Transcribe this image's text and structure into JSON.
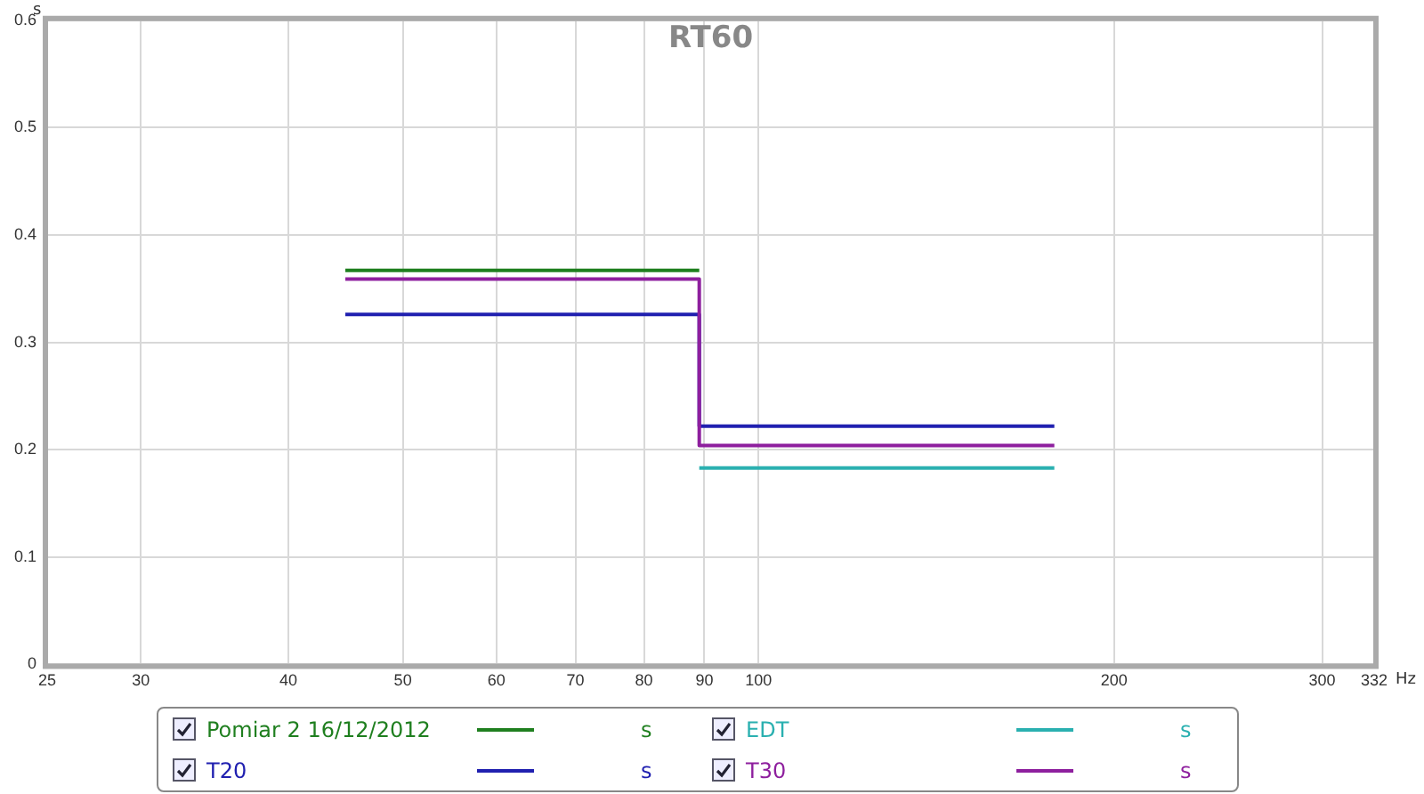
{
  "chart_data": {
    "type": "step",
    "title": "RT60",
    "xlabel": "Hz",
    "ylabel": "s",
    "log": "x",
    "grid": true,
    "legend": "bottom",
    "marker": "none",
    "line_style": "solid",
    "xlim": [
      25,
      332
    ],
    "xticks": [
      25,
      30,
      40,
      50,
      60,
      70,
      80,
      90,
      100,
      200,
      300,
      332
    ],
    "ylim": [
      0,
      0.6
    ],
    "yticks": [
      0,
      0.1,
      0.2,
      0.3,
      0.4,
      0.5,
      0.6
    ],
    "series": [
      {
        "name": "Pomiar 2 16/12/2012",
        "color": "#1f7f1f",
        "x": [
          44.7,
          89.1
        ],
        "values": [
          0.367,
          0.367
        ]
      },
      {
        "name": "EDT",
        "color": "#2ab0b0",
        "x": [
          89.1,
          178
        ],
        "values": [
          0.183,
          0.183
        ]
      },
      {
        "name": "T20",
        "color": "#2020b0",
        "x": [
          44.7,
          89.1,
          178
        ],
        "values": [
          0.326,
          0.222,
          0.222
        ]
      },
      {
        "name": "T30",
        "color": "#8e1f9e",
        "x": [
          44.7,
          89.1,
          178
        ],
        "values": [
          0.359,
          0.204,
          0.204
        ]
      }
    ]
  }
}
